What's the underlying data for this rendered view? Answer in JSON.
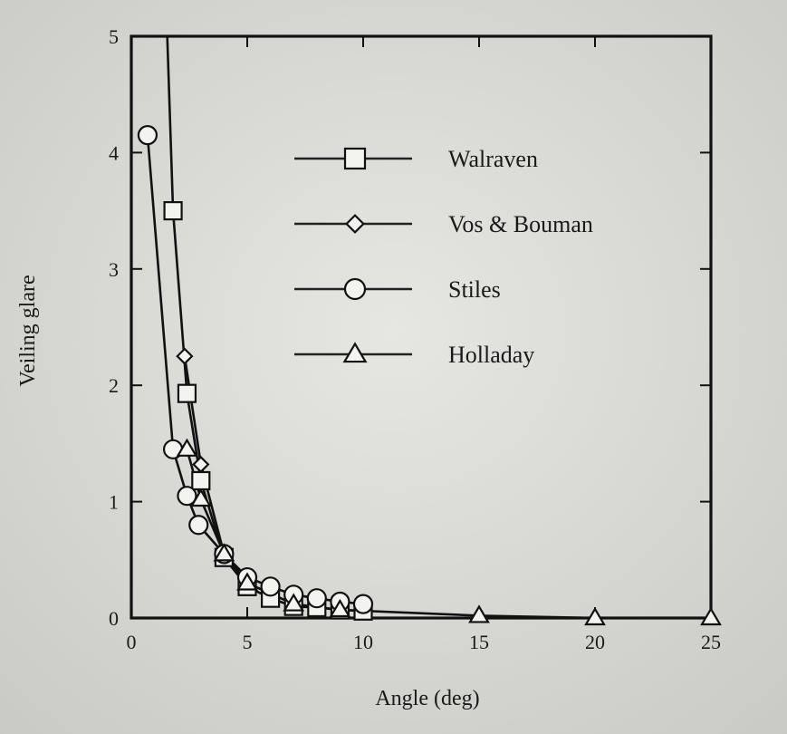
{
  "chart_data": {
    "type": "line",
    "xlabel": "Angle (deg)",
    "ylabel": "Veiling glare",
    "xlim": [
      0,
      25
    ],
    "ylim": [
      0,
      5
    ],
    "xticks": [
      "0",
      "5",
      "10",
      "15",
      "20",
      "25"
    ],
    "yticks": [
      "0",
      "1",
      "2",
      "3",
      "4",
      "5"
    ],
    "legend_position": "top-right (inside)",
    "grid": false,
    "series": [
      {
        "name": "Walraven",
        "marker": "square",
        "x": [
          1.8,
          2.4,
          3.0,
          4.0,
          5.0,
          6.0,
          7.0,
          8.0,
          9.0,
          10.0
        ],
        "y": [
          3.5,
          1.93,
          1.18,
          0.52,
          0.27,
          0.17,
          0.1,
          0.09,
          0.07,
          0.06
        ]
      },
      {
        "name": "Vos & Bouman",
        "marker": "diamond",
        "x": [
          2.3,
          3.0,
          4.0,
          5.0
        ],
        "y": [
          2.25,
          1.32,
          0.55,
          0.32
        ]
      },
      {
        "name": "Stiles",
        "marker": "circle",
        "x": [
          0.7,
          1.8,
          2.4,
          2.9,
          4.0,
          5.0,
          6.0,
          7.0,
          8.0,
          9.0,
          10.0
        ],
        "y": [
          4.15,
          1.45,
          1.05,
          0.8,
          0.55,
          0.35,
          0.27,
          0.2,
          0.17,
          0.14,
          0.12
        ]
      },
      {
        "name": "Holladay",
        "marker": "triangle",
        "x": [
          2.4,
          3.0,
          4.0,
          5.0,
          7.0,
          9.0,
          15.0,
          20.0,
          25.0
        ],
        "y": [
          1.45,
          1.02,
          0.55,
          0.3,
          0.12,
          0.07,
          0.02,
          0.0,
          0.0
        ]
      }
    ],
    "walraven_curve_top": {
      "x": 1.55,
      "y": 5.0
    }
  }
}
